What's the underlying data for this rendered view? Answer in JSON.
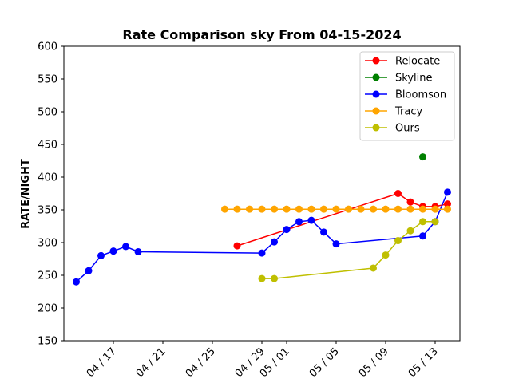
{
  "chart_data": {
    "type": "line",
    "title": "Rate Comparison sky From 04-15-2024",
    "xlabel": "",
    "ylabel": "RATE/NIGHT",
    "ylim": [
      150,
      600
    ],
    "xlim": [
      "2024-04-13",
      "2024-05-15"
    ],
    "yticks": [
      150,
      200,
      250,
      300,
      350,
      400,
      450,
      500,
      550,
      600
    ],
    "xticks": [
      {
        "date": "2024-04-17",
        "label": "04 / 17"
      },
      {
        "date": "2024-04-21",
        "label": "04 / 21"
      },
      {
        "date": "2024-04-25",
        "label": "04 / 25"
      },
      {
        "date": "2024-04-29",
        "label": "04 / 29"
      },
      {
        "date": "2024-05-01",
        "label": "05 / 01"
      },
      {
        "date": "2024-05-05",
        "label": "05 / 05"
      },
      {
        "date": "2024-05-09",
        "label": "05 / 09"
      },
      {
        "date": "2024-05-13",
        "label": "05 / 13"
      }
    ],
    "grid": false,
    "legend_position": "top-right",
    "series": [
      {
        "name": "Relocate",
        "color": "#ff0000",
        "points": [
          {
            "x": "2024-04-27",
            "y": 295
          },
          {
            "x": "2024-05-10",
            "y": 375
          },
          {
            "x": "2024-05-11",
            "y": 362
          },
          {
            "x": "2024-05-12",
            "y": 355
          },
          {
            "x": "2024-05-13",
            "y": 355
          },
          {
            "x": "2024-05-14",
            "y": 359
          }
        ]
      },
      {
        "name": "Skyline",
        "color": "#008000",
        "points": [
          {
            "x": "2024-05-12",
            "y": 431
          }
        ]
      },
      {
        "name": "Bloomson",
        "color": "#0000ff",
        "points": [
          {
            "x": "2024-04-14",
            "y": 240
          },
          {
            "x": "2024-04-15",
            "y": 257
          },
          {
            "x": "2024-04-16",
            "y": 280
          },
          {
            "x": "2024-04-17",
            "y": 287
          },
          {
            "x": "2024-04-18",
            "y": 294
          },
          {
            "x": "2024-04-19",
            "y": 286
          },
          {
            "x": "2024-04-29",
            "y": 284
          },
          {
            "x": "2024-04-30",
            "y": 301
          },
          {
            "x": "2024-05-01",
            "y": 320
          },
          {
            "x": "2024-05-02",
            "y": 332
          },
          {
            "x": "2024-05-03",
            "y": 334
          },
          {
            "x": "2024-05-04",
            "y": 316
          },
          {
            "x": "2024-05-05",
            "y": 298
          },
          {
            "x": "2024-05-12",
            "y": 310
          },
          {
            "x": "2024-05-13",
            "y": 332
          },
          {
            "x": "2024-05-14",
            "y": 377
          }
        ]
      },
      {
        "name": "Tracy",
        "color": "#ffa500",
        "points": [
          {
            "x": "2024-04-26",
            "y": 351
          },
          {
            "x": "2024-04-27",
            "y": 351
          },
          {
            "x": "2024-04-28",
            "y": 351
          },
          {
            "x": "2024-04-29",
            "y": 351
          },
          {
            "x": "2024-04-30",
            "y": 351
          },
          {
            "x": "2024-05-01",
            "y": 351
          },
          {
            "x": "2024-05-02",
            "y": 351
          },
          {
            "x": "2024-05-03",
            "y": 351
          },
          {
            "x": "2024-05-04",
            "y": 351
          },
          {
            "x": "2024-05-05",
            "y": 351
          },
          {
            "x": "2024-05-06",
            "y": 351
          },
          {
            "x": "2024-05-07",
            "y": 351
          },
          {
            "x": "2024-05-08",
            "y": 351
          },
          {
            "x": "2024-05-09",
            "y": 351
          },
          {
            "x": "2024-05-10",
            "y": 351
          },
          {
            "x": "2024-05-11",
            "y": 351
          },
          {
            "x": "2024-05-12",
            "y": 351
          },
          {
            "x": "2024-05-13",
            "y": 351
          },
          {
            "x": "2024-05-14",
            "y": 351
          }
        ]
      },
      {
        "name": "Ours",
        "color": "#bfbf00",
        "points": [
          {
            "x": "2024-04-29",
            "y": 245
          },
          {
            "x": "2024-04-30",
            "y": 245
          },
          {
            "x": "2024-05-08",
            "y": 261
          },
          {
            "x": "2024-05-09",
            "y": 281
          },
          {
            "x": "2024-05-10",
            "y": 303
          },
          {
            "x": "2024-05-11",
            "y": 318
          },
          {
            "x": "2024-05-12",
            "y": 332
          },
          {
            "x": "2024-05-13",
            "y": 332
          }
        ]
      }
    ]
  }
}
